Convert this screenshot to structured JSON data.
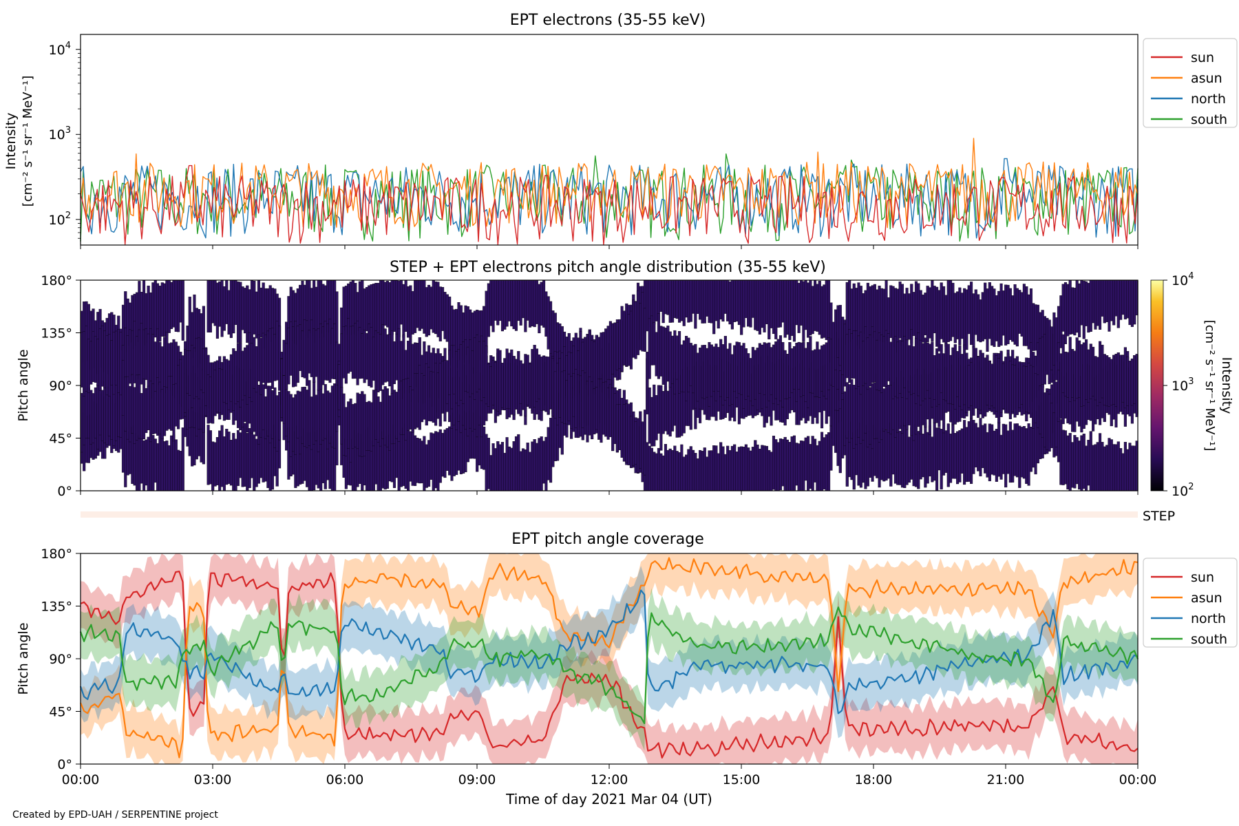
{
  "figure": {
    "footer": "Created by EPD-UAH / SERPENTINE project"
  },
  "colors": {
    "sun": "#d62728",
    "asun": "#ff7f0e",
    "north": "#1f77b4",
    "south": "#2ca02c",
    "pad_fill": "#2d1160",
    "step_band": "#fdeee6"
  },
  "chart_data": [
    {
      "type": "line",
      "title": "EPT electrons (35-55 keV)",
      "ylabel_line1": "Intensity",
      "ylabel_line2": "[cm⁻² s⁻¹ sr⁻¹ MeV⁻¹]",
      "yscale": "log",
      "ylim": [
        50,
        15000
      ],
      "yticks": [
        {
          "value": 100,
          "base": "10",
          "exp": "2"
        },
        {
          "value": 1000,
          "base": "10",
          "exp": "3"
        },
        {
          "value": 10000,
          "base": "10",
          "exp": "4"
        }
      ],
      "xlim": [
        "2021-03-04T00:00",
        "2021-03-05T00:00"
      ],
      "series": [
        {
          "name": "sun",
          "color_key": "sun",
          "typical_range": [
            50,
            330
          ],
          "spikes": [
            {
              "time": "2021-03-04T02:30",
              "value": 430
            }
          ]
        },
        {
          "name": "asun",
          "color_key": "asun",
          "typical_range": [
            80,
            480
          ],
          "spikes": [
            {
              "time": "2021-03-04T20:15",
              "value": 900
            },
            {
              "time": "2021-03-04T16:45",
              "value": 620
            },
            {
              "time": "2021-03-04T01:15",
              "value": 590
            }
          ]
        },
        {
          "name": "north",
          "color_key": "north",
          "typical_range": [
            60,
            450
          ],
          "spikes": [
            {
              "time": "2021-03-04T21:00",
              "value": 520
            }
          ]
        },
        {
          "name": "south",
          "color_key": "south",
          "typical_range": [
            55,
            440
          ],
          "spikes": [
            {
              "time": "2021-03-04T11:40",
              "value": 560
            },
            {
              "time": "2021-03-04T14:40",
              "value": 590
            },
            {
              "time": "2021-03-04T17:30",
              "value": 500
            }
          ]
        }
      ],
      "legend": {
        "position": "outside-right-top",
        "entries": [
          "sun",
          "asun",
          "north",
          "south"
        ]
      }
    },
    {
      "type": "heatmap",
      "title": "STEP + EPT electrons pitch angle distribution (35-55 keV)",
      "ylabel": "Pitch angle",
      "ylim": [
        0,
        180
      ],
      "yticks": [
        "0°",
        "45°",
        "90°",
        "135°",
        "180°"
      ],
      "colorbar": {
        "label_line1": "Intensity",
        "label_line2": "[cm⁻² s⁻¹ sr⁻¹ MeV⁻¹]",
        "scale": "log",
        "range": [
          100,
          10000
        ],
        "ticks": [
          {
            "base": "10",
            "exp": "4"
          },
          {
            "base": "10",
            "exp": "3"
          },
          {
            "base": "10",
            "exp": "2"
          }
        ]
      }
    },
    {
      "type": "band",
      "label": "STEP"
    },
    {
      "type": "line",
      "title": "EPT pitch angle coverage",
      "ylabel": "Pitch angle",
      "ylim": [
        0,
        180
      ],
      "yticks": [
        "0°",
        "45°",
        "90°",
        "135°",
        "180°"
      ],
      "xlabel": "Time of day 2021 Mar 04 (UT)",
      "xticks": [
        "00:00",
        "03:00",
        "06:00",
        "09:00",
        "12:00",
        "15:00",
        "18:00",
        "21:00",
        "00:00"
      ],
      "xlim_hours": [
        0,
        24
      ],
      "band_halfwidth_deg": 20,
      "series": [
        {
          "name": "sun",
          "color_key": "sun",
          "points": [
            [
              0,
              135
            ],
            [
              0.9,
              120
            ],
            [
              1.0,
              145
            ],
            [
              1.5,
              150
            ],
            [
              2.2,
              160
            ],
            [
              2.3,
              175
            ],
            [
              2.45,
              45
            ],
            [
              2.8,
              50
            ],
            [
              2.9,
              160
            ],
            [
              4.5,
              150
            ],
            [
              4.6,
              60
            ],
            [
              4.7,
              150
            ],
            [
              5.8,
              158
            ],
            [
              5.95,
              25
            ],
            [
              7.0,
              25
            ],
            [
              8.2,
              25
            ],
            [
              8.4,
              40
            ],
            [
              9.1,
              45
            ],
            [
              9.3,
              15
            ],
            [
              10.5,
              20
            ],
            [
              11.0,
              70
            ],
            [
              12.0,
              75
            ],
            [
              12.8,
              25
            ],
            [
              12.9,
              12
            ],
            [
              14.0,
              12
            ],
            [
              15.5,
              18
            ],
            [
              17.0,
              25
            ],
            [
              17.2,
              120
            ],
            [
              17.4,
              30
            ],
            [
              19.0,
              30
            ],
            [
              20.5,
              35
            ],
            [
              21.5,
              30
            ],
            [
              22.1,
              70
            ],
            [
              22.3,
              25
            ],
            [
              24.0,
              12
            ]
          ]
        },
        {
          "name": "asun",
          "color_key": "asun",
          "points": [
            [
              0,
              45
            ],
            [
              0.9,
              60
            ],
            [
              1.0,
              30
            ],
            [
              1.5,
              25
            ],
            [
              2.2,
              15
            ],
            [
              2.3,
              5
            ],
            [
              2.45,
              140
            ],
            [
              2.8,
              130
            ],
            [
              2.9,
              25
            ],
            [
              4.5,
              30
            ],
            [
              4.6,
              120
            ],
            [
              4.7,
              30
            ],
            [
              5.8,
              22
            ],
            [
              5.95,
              155
            ],
            [
              7.0,
              158
            ],
            [
              8.2,
              155
            ],
            [
              8.4,
              135
            ],
            [
              9.1,
              130
            ],
            [
              9.3,
              165
            ],
            [
              10.5,
              160
            ],
            [
              11.0,
              110
            ],
            [
              12.0,
              105
            ],
            [
              12.8,
              155
            ],
            [
              12.9,
              170
            ],
            [
              14.0,
              168
            ],
            [
              15.5,
              162
            ],
            [
              17.0,
              155
            ],
            [
              17.2,
              60
            ],
            [
              17.4,
              150
            ],
            [
              19.0,
              150
            ],
            [
              20.5,
              150
            ],
            [
              21.5,
              150
            ],
            [
              22.1,
              110
            ],
            [
              22.3,
              155
            ],
            [
              24.0,
              170
            ]
          ]
        },
        {
          "name": "north",
          "color_key": "north",
          "points": [
            [
              0,
              60
            ],
            [
              0.9,
              70
            ],
            [
              1.0,
              115
            ],
            [
              1.5,
              112
            ],
            [
              2.2,
              105
            ],
            [
              2.3,
              90
            ],
            [
              2.45,
              80
            ],
            [
              2.8,
              75
            ],
            [
              2.9,
              95
            ],
            [
              4.5,
              60
            ],
            [
              4.6,
              90
            ],
            [
              4.7,
              60
            ],
            [
              5.8,
              65
            ],
            [
              5.95,
              120
            ],
            [
              7.0,
              112
            ],
            [
              8.2,
              95
            ],
            [
              8.4,
              80
            ],
            [
              9.1,
              75
            ],
            [
              9.3,
              90
            ],
            [
              10.5,
              85
            ],
            [
              11.0,
              100
            ],
            [
              12.0,
              115
            ],
            [
              12.8,
              145
            ],
            [
              12.9,
              60
            ],
            [
              14.0,
              85
            ],
            [
              15.5,
              85
            ],
            [
              17.0,
              85
            ],
            [
              17.2,
              40
            ],
            [
              17.4,
              65
            ],
            [
              19.0,
              75
            ],
            [
              20.5,
              90
            ],
            [
              21.5,
              90
            ],
            [
              22.1,
              130
            ],
            [
              22.3,
              75
            ],
            [
              24.0,
              90
            ]
          ]
        },
        {
          "name": "south",
          "color_key": "south",
          "points": [
            [
              0,
              112
            ],
            [
              0.9,
              110
            ],
            [
              1.0,
              70
            ],
            [
              1.5,
              68
            ],
            [
              2.2,
              72
            ],
            [
              2.3,
              90
            ],
            [
              2.45,
              100
            ],
            [
              2.8,
              105
            ],
            [
              2.9,
              80
            ],
            [
              4.5,
              120
            ],
            [
              4.6,
              70
            ],
            [
              4.7,
              120
            ],
            [
              5.8,
              115
            ],
            [
              5.95,
              55
            ],
            [
              7.0,
              62
            ],
            [
              8.2,
              85
            ],
            [
              8.4,
              100
            ],
            [
              9.1,
              105
            ],
            [
              9.3,
              90
            ],
            [
              10.5,
              95
            ],
            [
              11.0,
              80
            ],
            [
              12.0,
              65
            ],
            [
              12.8,
              35
            ],
            [
              12.9,
              125
            ],
            [
              14.0,
              100
            ],
            [
              15.5,
              100
            ],
            [
              17.0,
              105
            ],
            [
              17.2,
              135
            ],
            [
              17.4,
              115
            ],
            [
              19.0,
              105
            ],
            [
              20.5,
              90
            ],
            [
              21.5,
              90
            ],
            [
              22.1,
              50
            ],
            [
              22.3,
              105
            ],
            [
              24.0,
              90
            ]
          ]
        }
      ],
      "legend": {
        "position": "outside-right-top",
        "entries": [
          "sun",
          "asun",
          "north",
          "south"
        ]
      }
    }
  ]
}
